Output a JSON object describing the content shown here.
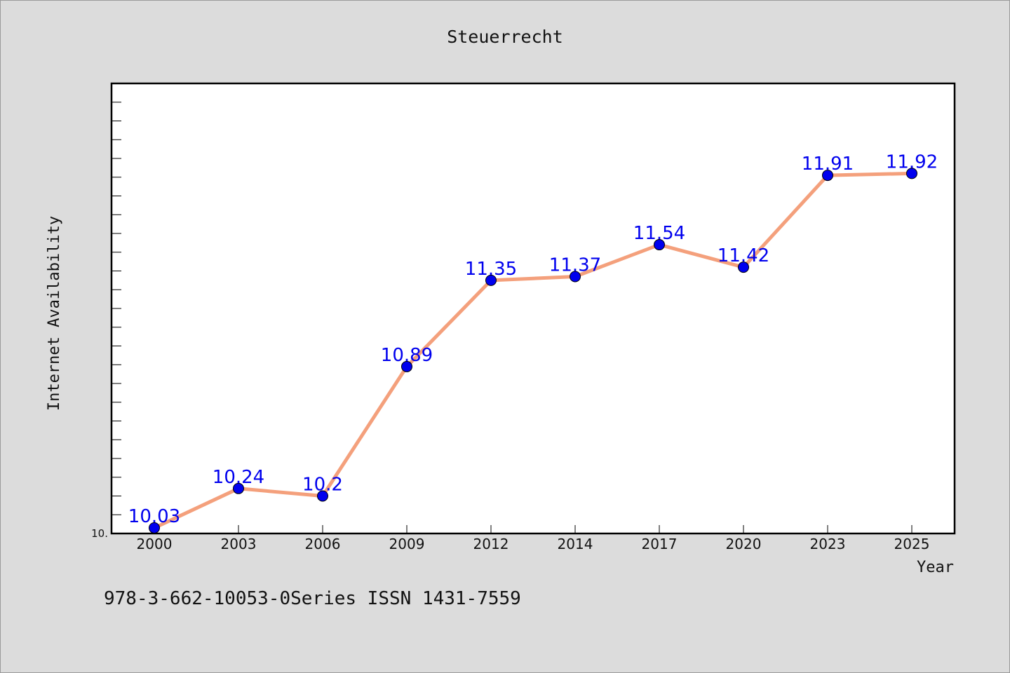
{
  "chart_data": {
    "type": "line",
    "title": "Steuerrecht",
    "xlabel": "Year",
    "ylabel": "Internet Availability",
    "categories": [
      "2000",
      "2003",
      "2006",
      "2009",
      "2012",
      "2014",
      "2017",
      "2020",
      "2023",
      "2025"
    ],
    "series": [
      {
        "values": [
          10.03,
          10.24,
          10.2,
          10.89,
          11.35,
          11.37,
          11.54,
          11.42,
          11.91,
          11.92
        ],
        "line_color": "#f4a07c",
        "marker_color": "#0000ee",
        "label_color": "#0000ee"
      }
    ],
    "data_labels": [
      "10.03",
      "10.24",
      "10.2",
      "10.89",
      "11.35",
      "11.37",
      "11.54",
      "11.42",
      "11.91",
      "11.92"
    ],
    "ylim": [
      10.0,
      12.4
    ],
    "y_tick_labels": [
      "10."
    ],
    "y_minor_tick_step": 0.1,
    "grid": false,
    "legend": "none"
  },
  "footer": {
    "text": "978-3-662-10053-0Series ISSN 1431-7559"
  }
}
